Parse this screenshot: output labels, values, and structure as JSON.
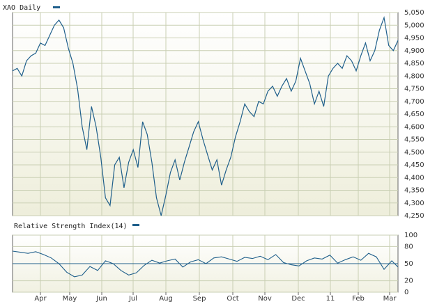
{
  "colors": {
    "line": "#1f5f8b",
    "grid": "#c9cfb3",
    "border": "#666666"
  },
  "chart_data": [
    {
      "type": "line",
      "title": "XAO Daily",
      "ylim": [
        4250,
        5050
      ],
      "y_ticks": [
        "5,050",
        "5,000",
        "4,950",
        "4,900",
        "4,850",
        "4,800",
        "4,750",
        "4,700",
        "4,650",
        "4,600",
        "4,550",
        "4,500",
        "4,450",
        "4,400",
        "4,350",
        "4,300",
        "4,250"
      ],
      "x_ticks": [
        "Apr",
        "May",
        "Jun",
        "Jul",
        "Aug",
        "Sep",
        "Oct",
        "Nov",
        "Dec",
        "11",
        "Feb",
        "Mar"
      ],
      "grid": true,
      "series": [
        {
          "x": [
            0,
            3,
            6,
            9,
            12,
            15,
            18,
            21,
            24,
            27,
            30,
            33,
            36,
            39,
            42,
            45,
            48,
            51,
            54,
            57,
            60,
            63,
            66,
            69,
            72,
            75,
            78,
            81,
            84,
            87,
            90,
            93,
            96,
            99,
            102,
            105,
            108,
            111,
            114,
            117,
            120,
            123,
            126,
            129,
            132,
            135,
            138,
            141,
            144,
            147,
            150,
            153,
            156,
            159,
            162,
            165,
            168,
            171,
            174,
            177,
            180,
            183,
            186,
            189,
            192,
            195,
            198,
            201,
            204,
            207,
            210,
            213,
            216,
            219,
            222,
            225,
            228,
            231,
            234,
            237,
            240,
            243,
            246,
            249
          ],
          "values": [
            4820,
            4830,
            4800,
            4860,
            4880,
            4890,
            4930,
            4920,
            4960,
            5000,
            5020,
            4990,
            4910,
            4850,
            4750,
            4600,
            4510,
            4680,
            4600,
            4480,
            4320,
            4290,
            4450,
            4480,
            4360,
            4460,
            4510,
            4440,
            4620,
            4570,
            4460,
            4320,
            4250,
            4330,
            4420,
            4470,
            4390,
            4460,
            4520,
            4580,
            4620,
            4550,
            4490,
            4430,
            4470,
            4370,
            4430,
            4480,
            4560,
            4620,
            4690,
            4660,
            4640,
            4700,
            4690,
            4740,
            4760,
            4720,
            4760,
            4790,
            4740,
            4780,
            4870,
            4820,
            4770,
            4690,
            4740,
            4680,
            4800,
            4830,
            4850,
            4830,
            4880,
            4860,
            4820,
            4880,
            4930,
            4860,
            4900,
            4980,
            5030,
            4920,
            4900,
            4940
          ]
        }
      ]
    },
    {
      "type": "line",
      "title": "Relative Strength Index(14)",
      "ylim": [
        0,
        100
      ],
      "y_ticks": [
        "100",
        "80",
        "50",
        "20",
        "0"
      ],
      "reference_line": 50,
      "grid": true,
      "series": [
        {
          "x": [
            0,
            5,
            10,
            15,
            20,
            25,
            30,
            35,
            40,
            45,
            50,
            55,
            60,
            65,
            70,
            75,
            80,
            85,
            90,
            95,
            100,
            105,
            110,
            115,
            120,
            125,
            130,
            135,
            140,
            145,
            150,
            155,
            160,
            165,
            170,
            175,
            180,
            185,
            190,
            195,
            200,
            205,
            210,
            215,
            220,
            225,
            230,
            235,
            240,
            245,
            249
          ],
          "values": [
            72,
            70,
            68,
            71,
            66,
            60,
            50,
            35,
            27,
            30,
            45,
            38,
            55,
            50,
            38,
            30,
            34,
            47,
            56,
            51,
            55,
            58,
            44,
            53,
            57,
            50,
            60,
            62,
            58,
            54,
            61,
            59,
            63,
            57,
            66,
            52,
            48,
            46,
            55,
            60,
            58,
            65,
            51,
            57,
            62,
            56,
            68,
            62,
            40,
            55,
            44
          ]
        }
      ]
    }
  ]
}
